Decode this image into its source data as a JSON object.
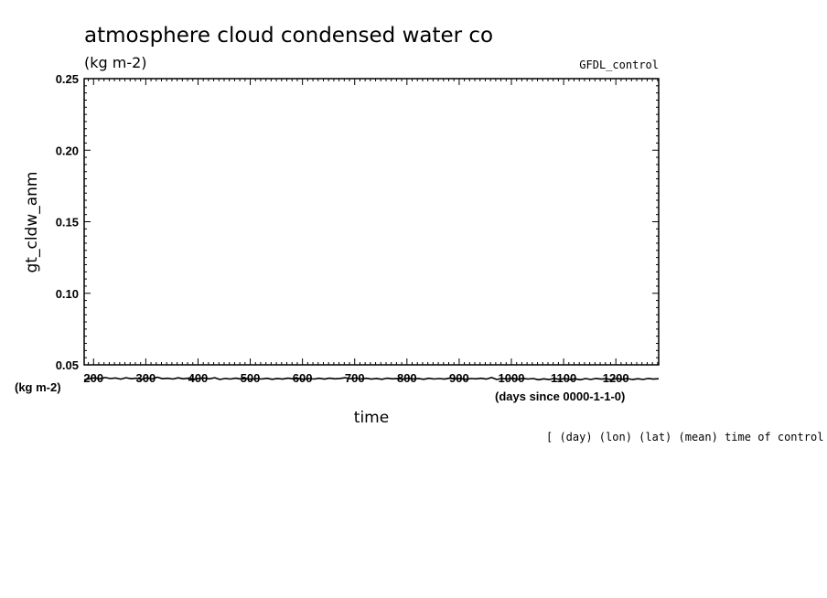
{
  "chart_data": {
    "type": "line",
    "title": "atmosphere cloud condensed water co",
    "units_label": "(kg m-2)",
    "dataset_label": "GFDL_control",
    "ylabel": "gt_cldw_anm",
    "y_units": "(kg m-2)",
    "xlabel": "time",
    "x_units": "(days since 0000-1-1-0)",
    "footer_note": "[ (day) (lon) (lat) (mean) time of control ]",
    "xlim": [
      182,
      1282
    ],
    "ylim": [
      0.05,
      0.25
    ],
    "x_ticks": [
      200,
      300,
      400,
      500,
      600,
      700,
      800,
      900,
      1000,
      1100,
      1200
    ],
    "x_tick_labels": [
      "200",
      "300",
      "400",
      "500",
      "600",
      "700",
      "800",
      "900",
      "1000",
      "1100",
      "1200"
    ],
    "y_ticks": [
      0.05,
      0.1,
      0.15,
      0.2,
      0.25
    ],
    "y_tick_labels": [
      "0.05",
      "0.10",
      "0.15",
      "0.20",
      "0.25"
    ],
    "series": [
      {
        "name": "gt_cldw_anm",
        "x": [
          182,
          192,
          202,
          212,
          222,
          232,
          242,
          252,
          262,
          272,
          282,
          292,
          302,
          312,
          322,
          332,
          342,
          352,
          362,
          372,
          382,
          392,
          402,
          412,
          422,
          432,
          442,
          452,
          462,
          472,
          482,
          492,
          502,
          512,
          522,
          532,
          542,
          552,
          562,
          572,
          582,
          592,
          602,
          612,
          622,
          632,
          642,
          652,
          662,
          672,
          682,
          692,
          702,
          712,
          722,
          732,
          742,
          752,
          762,
          772,
          782,
          792,
          802,
          812,
          822,
          832,
          842,
          852,
          862,
          872,
          882,
          892,
          902,
          912,
          922,
          932,
          942,
          952,
          962,
          972,
          982,
          992,
          1002,
          1012,
          1022,
          1032,
          1042,
          1052,
          1062,
          1072,
          1082,
          1092,
          1102,
          1112,
          1122,
          1132,
          1142,
          1152,
          1162,
          1172,
          1182,
          1192,
          1202,
          1212,
          1222,
          1232,
          1242,
          1252,
          1262,
          1272,
          1282
        ],
        "values": [
          0.0395,
          0.0403,
          0.0409,
          0.0402,
          0.0411,
          0.0404,
          0.0408,
          0.04,
          0.041,
          0.0403,
          0.0407,
          0.0399,
          0.0409,
          0.0401,
          0.0414,
          0.0403,
          0.0406,
          0.0401,
          0.0409,
          0.0402,
          0.0407,
          0.04,
          0.0405,
          0.0408,
          0.0402,
          0.041,
          0.0398,
          0.0405,
          0.0401,
          0.0407,
          0.04,
          0.0405,
          0.0399,
          0.0404,
          0.0401,
          0.0406,
          0.0399,
          0.0405,
          0.04,
          0.0407,
          0.0402,
          0.0405,
          0.0399,
          0.0404,
          0.0401,
          0.0406,
          0.04,
          0.0407,
          0.0402,
          0.0405,
          0.041,
          0.0402,
          0.0408,
          0.0401,
          0.0406,
          0.04,
          0.0405,
          0.0399,
          0.0407,
          0.0402,
          0.0405,
          0.04,
          0.0407,
          0.0401,
          0.0405,
          0.0399,
          0.0406,
          0.0401,
          0.0404,
          0.04,
          0.0407,
          0.0402,
          0.0405,
          0.0399,
          0.0404,
          0.0402,
          0.0406,
          0.04,
          0.0411,
          0.0398,
          0.0405,
          0.0401,
          0.0406,
          0.0399,
          0.0405,
          0.0401,
          0.0404,
          0.0396,
          0.0402,
          0.0397,
          0.0405,
          0.0399,
          0.0404,
          0.0397,
          0.0402,
          0.0396,
          0.0404,
          0.0398,
          0.0405,
          0.04,
          0.0403,
          0.0396,
          0.0405,
          0.0399,
          0.0404,
          0.0397,
          0.0403,
          0.0398,
          0.0405,
          0.04,
          0.0403
        ]
      }
    ]
  }
}
